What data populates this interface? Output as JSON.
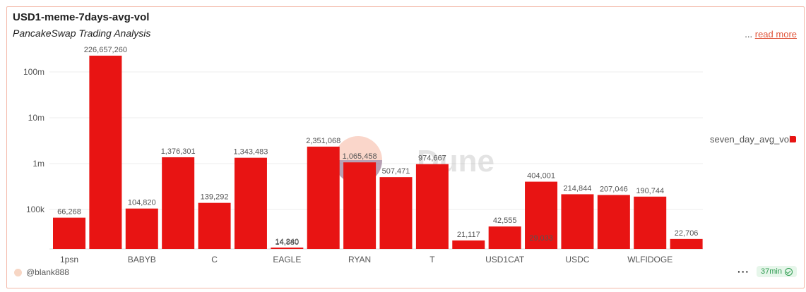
{
  "header": {
    "title": "USD1-meme-7days-avg-vol",
    "subtitle": "PancakeSwap Trading Analysis",
    "more_dots": "...",
    "read_more": "read more"
  },
  "footer": {
    "user": "@blank888",
    "more_dots": "···",
    "refresh_badge": "37min"
  },
  "watermark": "Dune",
  "colors": {
    "bar": "#e81413",
    "accent": "#e0563b",
    "status": "#2d9b4f"
  },
  "chart_data": {
    "type": "bar",
    "yscale": "log",
    "ylim": [
      20000,
      300000000
    ],
    "yticks": [
      {
        "value": 100000,
        "label": "100k"
      },
      {
        "value": 1000000,
        "label": "1m"
      },
      {
        "value": 10000000,
        "label": "10m"
      },
      {
        "value": 100000000,
        "label": "100m"
      }
    ],
    "grid": true,
    "legend_position": "right",
    "series": [
      {
        "name": "seven_day_avg_vol",
        "values": [
          66268,
          226657260,
          104820,
          1376301,
          139292,
          1343483,
          14240,
          2351068,
          1065458,
          507471,
          974667,
          21117,
          42555,
          404001,
          214844,
          207046,
          190744,
          22706
        ]
      }
    ],
    "value_labels": [
      "66,268",
      "226,657,260",
      "104,820",
      "1,376,301",
      "139,292",
      "1,343,483",
      "14,240",
      "2,351,068",
      "1,065,458",
      "507,471",
      "974,667",
      "21,117",
      "42,555",
      "404,001",
      "214,844",
      "207,046",
      "190,744",
      "22,706"
    ],
    "overlapping_labels": [
      {
        "bar_index": 6,
        "text": "14,880"
      },
      {
        "bar_index": 13,
        "text": "29,033"
      }
    ],
    "x_tick_labels": [
      {
        "bar_index": 0,
        "label": "1psn"
      },
      {
        "bar_index": 2,
        "label": "BABYB"
      },
      {
        "bar_index": 4,
        "label": "C"
      },
      {
        "bar_index": 6,
        "label": "EAGLE"
      },
      {
        "bar_index": 8,
        "label": "RYAN"
      },
      {
        "bar_index": 10,
        "label": "T"
      },
      {
        "bar_index": 12,
        "label": "USD1CAT"
      },
      {
        "bar_index": 14,
        "label": "USDC"
      },
      {
        "bar_index": 16,
        "label": "WLFIDOGE"
      }
    ]
  }
}
